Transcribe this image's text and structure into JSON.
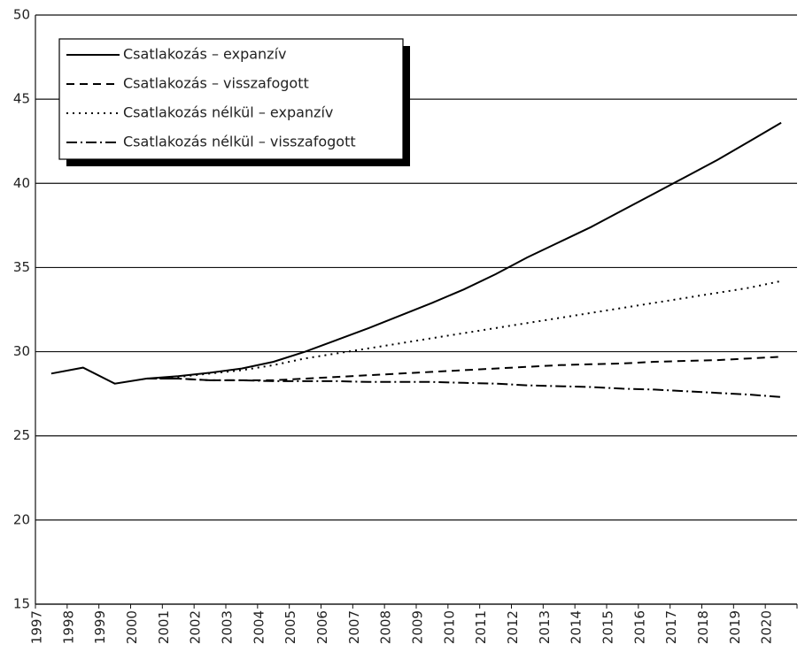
{
  "chart_data": {
    "type": "line",
    "categories": [
      "1997",
      "1998",
      "1999",
      "2000",
      "2001",
      "2002",
      "2003",
      "2004",
      "2005",
      "2006",
      "2007",
      "2008",
      "2009",
      "2010",
      "2011",
      "2012",
      "2013",
      "2014",
      "2015",
      "2016",
      "2017",
      "2018",
      "2019",
      "2020"
    ],
    "ylim": [
      15,
      50
    ],
    "yticks": [
      15,
      20,
      25,
      30,
      35,
      40,
      45,
      50
    ],
    "grid": true,
    "legend": "top-left",
    "series": [
      {
        "name": "Csatlakozás – expanzív",
        "color": "#000000",
        "dash": "none",
        "values": [
          28.7,
          29.05,
          28.1,
          28.4,
          28.55,
          28.75,
          29.0,
          29.4,
          30.0,
          30.7,
          31.4,
          32.15,
          32.9,
          33.7,
          34.6,
          35.6,
          36.5,
          37.4,
          38.4,
          39.4,
          40.4,
          41.4,
          42.5,
          43.6
        ]
      },
      {
        "name": "Csatlakozás – visszafogott",
        "color": "#000000",
        "dash": "9,6",
        "values": [
          null,
          null,
          null,
          28.4,
          28.4,
          28.3,
          28.3,
          28.3,
          28.4,
          28.5,
          28.6,
          28.7,
          28.8,
          28.9,
          29.0,
          29.1,
          29.2,
          29.25,
          29.3,
          29.4,
          29.45,
          29.5,
          29.6,
          29.7
        ]
      },
      {
        "name": "Csatlakozás nélkül – expanzív",
        "color": "#000000",
        "dash": "2,5",
        "values": [
          null,
          null,
          null,
          28.4,
          28.5,
          28.7,
          28.9,
          29.2,
          29.6,
          29.9,
          30.2,
          30.5,
          30.8,
          31.1,
          31.4,
          31.7,
          32.0,
          32.3,
          32.6,
          32.9,
          33.2,
          33.5,
          33.8,
          34.2
        ]
      },
      {
        "name": "Csatlakozás nélkül – visszafogott",
        "color": "#000000",
        "dash": "12,4,2,4",
        "values": [
          null,
          null,
          null,
          28.4,
          28.4,
          28.3,
          28.3,
          28.25,
          28.25,
          28.25,
          28.2,
          28.2,
          28.2,
          28.15,
          28.1,
          28.0,
          27.95,
          27.9,
          27.8,
          27.75,
          27.65,
          27.55,
          27.45,
          27.3
        ]
      }
    ]
  }
}
